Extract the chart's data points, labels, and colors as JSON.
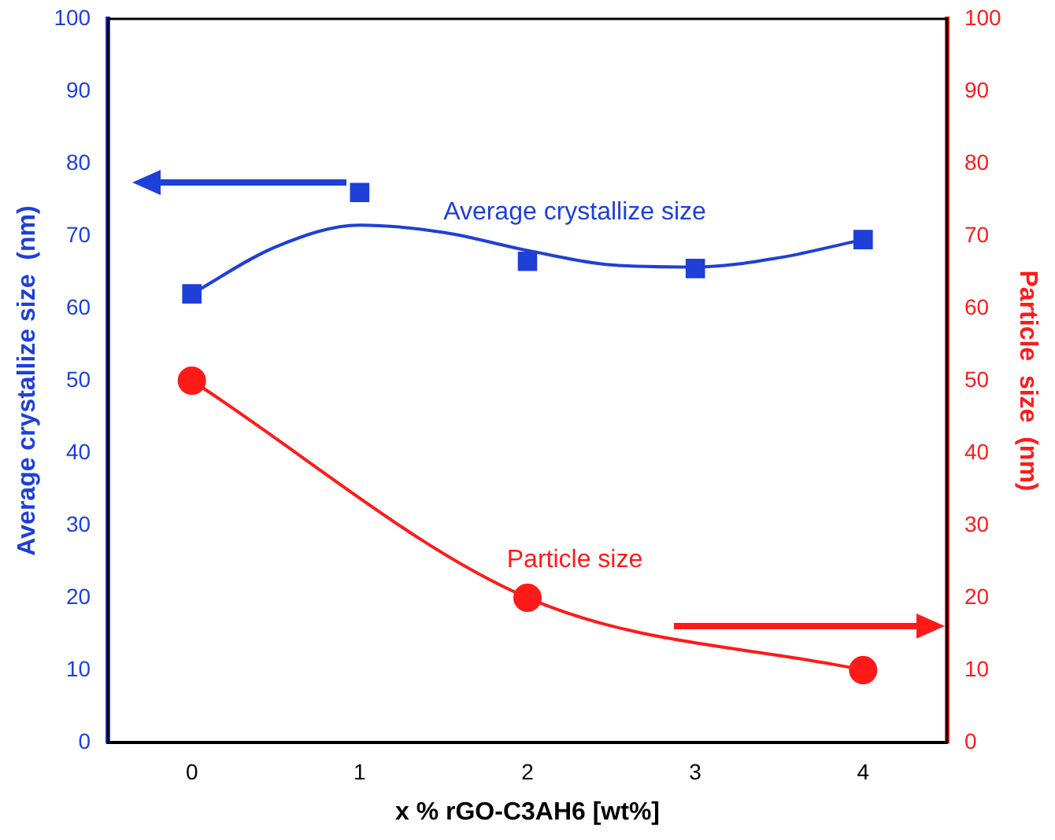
{
  "chart_data": {
    "type": "line",
    "xlabel": "x % rGO-C3AH6 [wt%]",
    "ylabel": "Average crystallize size  (nm)",
    "y2label": "Particle  size  (nm)",
    "xlim": [
      -0.5,
      4.5
    ],
    "xticks": [
      0,
      1,
      2,
      3,
      4
    ],
    "ylim": [
      0,
      100
    ],
    "yticks": [
      0,
      10,
      20,
      30,
      40,
      50,
      60,
      70,
      80,
      90,
      100
    ],
    "y2lim": [
      0,
      100
    ],
    "y2ticks": [
      0,
      10,
      20,
      30,
      40,
      50,
      60,
      70,
      80,
      90,
      100
    ],
    "grid": false,
    "legend": false,
    "line_style": "solid",
    "series": [
      {
        "type": "scatter",
        "color": "#1f3fd9",
        "marker": "square",
        "x": [
          0,
          1,
          2,
          3,
          4
        ],
        "values": [
          62,
          76,
          66.5,
          65.5,
          69.5
        ]
      },
      {
        "name": "Average crystallize size",
        "color": "#1f3fd9",
        "marker": "none",
        "x": [
          0,
          0.5,
          1,
          1.5,
          2,
          2.5,
          3,
          3.5,
          4
        ],
        "values": [
          62,
          68.5,
          71.5,
          70.5,
          68,
          66,
          65.7,
          67,
          69.5
        ]
      },
      {
        "name": "Particle size",
        "axis": "y2",
        "color": "#ff1a1a",
        "marker": "circle",
        "x": [
          0,
          2,
          4
        ],
        "values": [
          50,
          20,
          10
        ]
      }
    ]
  }
}
